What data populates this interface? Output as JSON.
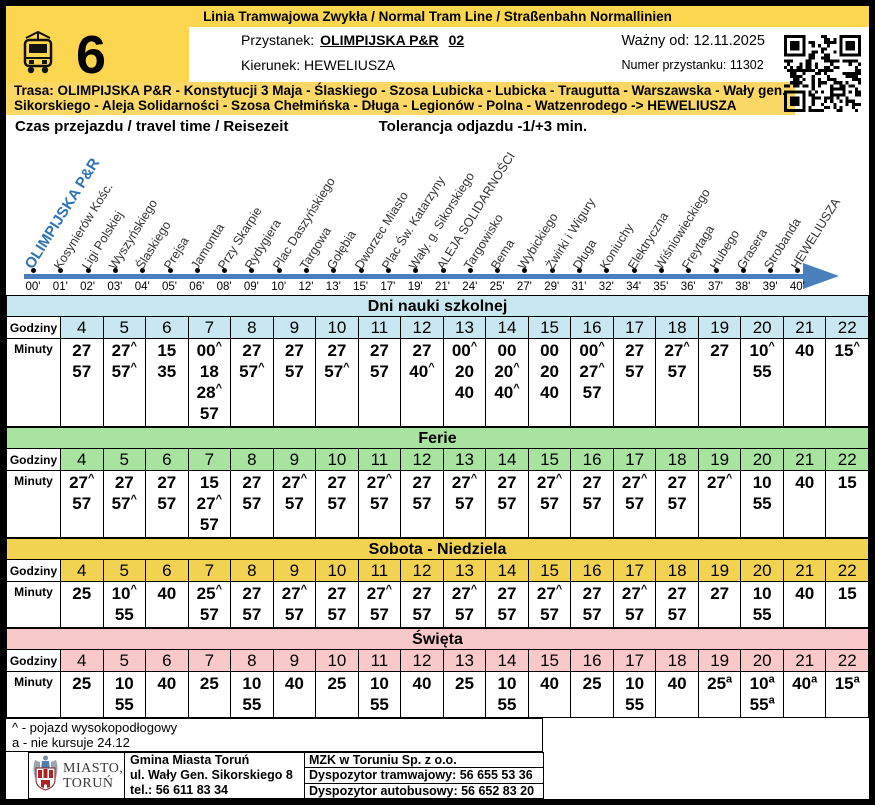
{
  "header": {
    "banner": "Linia Tramwajowa Zwykła / Normal Tram Line / Straßenbahn Normallinien",
    "line_number": "6",
    "stop_label": "Przystanek:",
    "stop_name": "OLIMPIJSKA P&R",
    "stop_platform": "02",
    "direction_label": "Kierunek:",
    "direction": "HEWELIUSZA",
    "valid_from": "Ważny od: 12.11.2025",
    "stop_number": "Numer przystanku: 11302"
  },
  "route": {
    "line1": "Trasa: OLIMPIJSKA P&R - Konstytucji 3 Maja - Ślaskiego - Szosa Lubicka - Lubicka - Traugutta - Warszawska - Wały gen.",
    "line2": "Sikorskiego - Aleja Solidarności - Szosa Chełmińska - Długa - Legionów - Polna - Watzenrodego -> HEWELIUSZA",
    "stops": [
      {
        "name": "OLIMPIJSKA P&R",
        "time": "00'",
        "origin": true
      },
      {
        "name": "Kosynierów Kośc.",
        "time": "01'"
      },
      {
        "name": "Ligi Polskiej",
        "time": "02'"
      },
      {
        "name": "Wyszyńskiego",
        "time": "03'"
      },
      {
        "name": "Ślaskiego",
        "time": "04'"
      },
      {
        "name": "Prejsa",
        "time": "05'"
      },
      {
        "name": "Jamontta",
        "time": "06'"
      },
      {
        "name": "Przy Skarpie",
        "time": "08'"
      },
      {
        "name": "Rydygiera",
        "time": "09'"
      },
      {
        "name": "Plac Daszyńskiego",
        "time": "10'"
      },
      {
        "name": "Targowa",
        "time": "12'"
      },
      {
        "name": "Gołębia",
        "time": "13'"
      },
      {
        "name": "Dworzec Miasto",
        "time": "15'"
      },
      {
        "name": "Plac Św. Katarzyny",
        "time": "17'"
      },
      {
        "name": "Wały. g. Sikorskiego",
        "time": "19'"
      },
      {
        "name": "ALEJA SOLIDARNOŚCI",
        "time": "21'"
      },
      {
        "name": "Targowisko",
        "time": "24'"
      },
      {
        "name": "Bema",
        "time": "25'"
      },
      {
        "name": "Wybickiego",
        "time": "27'"
      },
      {
        "name": "Żwirki i Wigury",
        "time": "29'"
      },
      {
        "name": "Długa",
        "time": "31'"
      },
      {
        "name": "Koniuchy",
        "time": "32'"
      },
      {
        "name": "Elektryczna",
        "time": "34'"
      },
      {
        "name": "Wiśniowieckiego",
        "time": "35'"
      },
      {
        "name": "Freytaga",
        "time": "36'"
      },
      {
        "name": "Hubego",
        "time": "37'"
      },
      {
        "name": "Grasera",
        "time": "38'"
      },
      {
        "name": "Strobanda",
        "time": "39'"
      },
      {
        "name": "HEWELIUSZA",
        "time": "40'"
      }
    ]
  },
  "info": {
    "travel_time_label": "Czas przejazdu / travel time / Reisezeit",
    "tolerance_label": "Tolerancja odjazdu -1/+3 min."
  },
  "table_labels": {
    "hours": "Godziny",
    "minutes": "Minuty"
  },
  "hours": [
    "4",
    "5",
    "6",
    "7",
    "8",
    "9",
    "10",
    "11",
    "12",
    "13",
    "14",
    "15",
    "16",
    "17",
    "18",
    "19",
    "20",
    "21",
    "22"
  ],
  "timetables": [
    {
      "title": "Dni nauki szkolnej",
      "color": "#c9e7f1",
      "minutes": [
        [
          "27",
          "57"
        ],
        [
          "27^",
          "57^"
        ],
        [
          "15",
          "35"
        ],
        [
          "00^",
          "18",
          "28^",
          "57"
        ],
        [
          "27",
          "57^"
        ],
        [
          "27",
          "57"
        ],
        [
          "27",
          "57^"
        ],
        [
          "27",
          "57"
        ],
        [
          "27",
          "40^"
        ],
        [
          "00^",
          "20",
          "40"
        ],
        [
          "00",
          "20^",
          "40^"
        ],
        [
          "00",
          "20",
          "40"
        ],
        [
          "00^",
          "27^",
          "57"
        ],
        [
          "27",
          "57"
        ],
        [
          "27^",
          "57"
        ],
        [
          "27"
        ],
        [
          "10^",
          "55"
        ],
        [
          "40"
        ],
        [
          "15^"
        ]
      ]
    },
    {
      "title": "Ferie",
      "color": "#a8e4a0",
      "minutes": [
        [
          "27^",
          "57"
        ],
        [
          "27",
          "57^"
        ],
        [
          "27",
          "57"
        ],
        [
          "15",
          "27^",
          "57"
        ],
        [
          "27",
          "57"
        ],
        [
          "27^",
          "57"
        ],
        [
          "27",
          "57"
        ],
        [
          "27^",
          "57"
        ],
        [
          "27",
          "57"
        ],
        [
          "27^",
          "57"
        ],
        [
          "27",
          "57"
        ],
        [
          "27^",
          "57"
        ],
        [
          "27",
          "57"
        ],
        [
          "27^",
          "57"
        ],
        [
          "27",
          "57"
        ],
        [
          "27^"
        ],
        [
          "10",
          "55"
        ],
        [
          "40"
        ],
        [
          "15"
        ]
      ]
    },
    {
      "title": "Sobota - Niedziela",
      "color": "#f1d351",
      "minutes": [
        [
          "25"
        ],
        [
          "10^",
          "55"
        ],
        [
          "40"
        ],
        [
          "25^",
          "57"
        ],
        [
          "27",
          "57"
        ],
        [
          "27^",
          "57"
        ],
        [
          "27",
          "57"
        ],
        [
          "27^",
          "57"
        ],
        [
          "27",
          "57"
        ],
        [
          "27^",
          "57"
        ],
        [
          "27",
          "57"
        ],
        [
          "27^",
          "57"
        ],
        [
          "27",
          "57"
        ],
        [
          "27^",
          "57"
        ],
        [
          "27",
          "57"
        ],
        [
          "27"
        ],
        [
          "10",
          "55"
        ],
        [
          "40"
        ],
        [
          "15"
        ]
      ]
    },
    {
      "title": "Święta",
      "color": "#f8c9c8",
      "minutes": [
        [
          "25"
        ],
        [
          "10",
          "55"
        ],
        [
          "40"
        ],
        [
          "25"
        ],
        [
          "10",
          "55"
        ],
        [
          "40"
        ],
        [
          "25"
        ],
        [
          "10",
          "55"
        ],
        [
          "40"
        ],
        [
          "25"
        ],
        [
          "10",
          "55"
        ],
        [
          "40"
        ],
        [
          "25"
        ],
        [
          "10",
          "55"
        ],
        [
          "40"
        ],
        [
          "25a"
        ],
        [
          "10a",
          "55a"
        ],
        [
          "40a"
        ],
        [
          "15a"
        ]
      ]
    }
  ],
  "footnotes": [
    "^ - pojazd wysokopodłogowy",
    "a - nie kursuje 24.12"
  ],
  "footer": {
    "logo_line1": "MIASTO,",
    "logo_line2": "TORUŃ",
    "city": [
      "Gmina Miasta Toruń",
      "ul. Wały Gen. Sikorskiego 8",
      "tel.: 56 611 83 34"
    ],
    "mzk": [
      "MZK w Toruniu Sp. z o.o.",
      "Dyspozytor tramwajowy: 56 655 53 36",
      "Dyspozytor autobusowy: 56 652 83 20"
    ]
  },
  "colors": {
    "banner_yellow": "#fcd64e",
    "route_band_yellow": "#fbd765",
    "school_blue": "#c9e7f1",
    "holiday_green": "#a8e4a0",
    "weekend_gold": "#f1d351",
    "festive_pink": "#f8c9c8",
    "timeline_blue": "#4a7ebc",
    "origin_stop_blue": "#2e74b5"
  }
}
